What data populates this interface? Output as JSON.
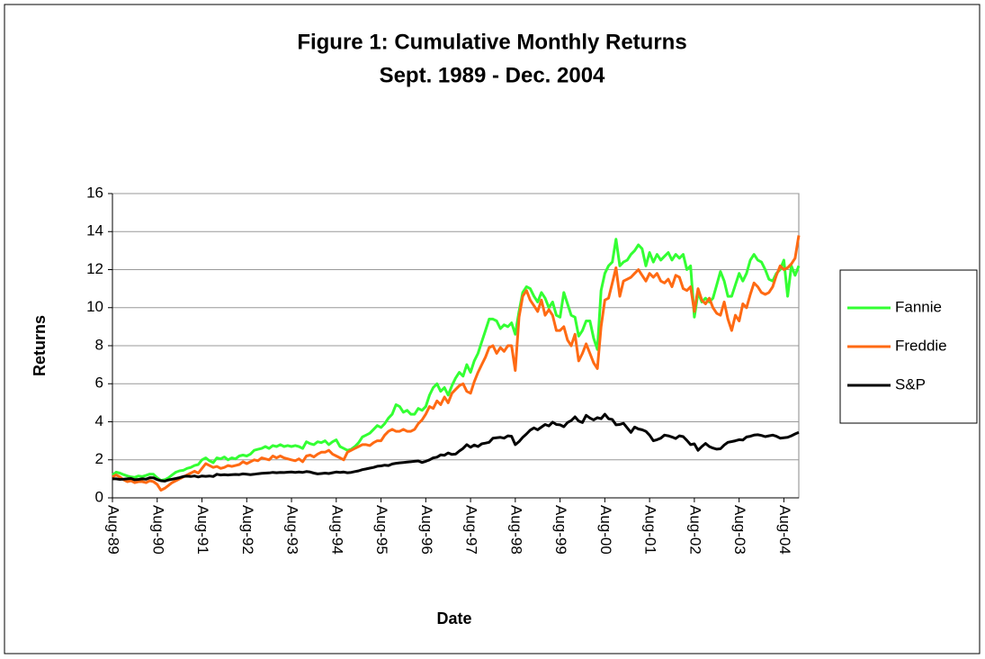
{
  "chart_data": {
    "type": "line",
    "title": "Figure 1: Cumulative Monthly Returns",
    "subtitle": "Sept. 1989 - Dec. 2004",
    "xlabel": "Date",
    "ylabel": "Returns",
    "categories": [
      "Aug-89",
      null,
      null,
      null,
      null,
      null,
      null,
      null,
      null,
      null,
      null,
      null,
      "Aug-90",
      null,
      null,
      null,
      null,
      null,
      null,
      null,
      null,
      null,
      null,
      null,
      "Aug-91",
      null,
      null,
      null,
      null,
      null,
      null,
      null,
      null,
      null,
      null,
      null,
      "Aug-92",
      null,
      null,
      null,
      null,
      null,
      null,
      null,
      null,
      null,
      null,
      null,
      "Aug-93",
      null,
      null,
      null,
      null,
      null,
      null,
      null,
      null,
      null,
      null,
      null,
      "Aug-94",
      null,
      null,
      null,
      null,
      null,
      null,
      null,
      null,
      null,
      null,
      null,
      "Aug-95",
      null,
      null,
      null,
      null,
      null,
      null,
      null,
      null,
      null,
      null,
      null,
      "Aug-96",
      null,
      null,
      null,
      null,
      null,
      null,
      null,
      null,
      null,
      null,
      null,
      "Aug-97",
      null,
      null,
      null,
      null,
      null,
      null,
      null,
      null,
      null,
      null,
      null,
      "Aug-98",
      null,
      null,
      null,
      null,
      null,
      null,
      null,
      null,
      null,
      null,
      null,
      "Aug-99",
      null,
      null,
      null,
      null,
      null,
      null,
      null,
      null,
      null,
      null,
      null,
      "Aug-00",
      null,
      null,
      null,
      null,
      null,
      null,
      null,
      null,
      null,
      null,
      null,
      "Aug-01",
      null,
      null,
      null,
      null,
      null,
      null,
      null,
      null,
      null,
      null,
      null,
      "Aug-02",
      null,
      null,
      null,
      null,
      null,
      null,
      null,
      null,
      null,
      null,
      null,
      "Aug-03",
      null,
      null,
      null,
      null,
      null,
      null,
      null,
      null,
      null,
      null,
      null,
      "Aug-04",
      null,
      null,
      null,
      null
    ],
    "series": [
      {
        "name": "Fannie",
        "color": "#33ff33",
        "values": [
          1.2,
          1.35,
          1.3,
          1.22,
          1.15,
          1.1,
          1.08,
          1.15,
          1.12,
          1.18,
          1.25,
          1.24,
          1.05,
          0.92,
          0.95,
          1.05,
          1.2,
          1.35,
          1.42,
          1.45,
          1.55,
          1.6,
          1.7,
          1.75,
          2.0,
          2.1,
          1.95,
          1.85,
          2.1,
          2.05,
          2.15,
          2.0,
          2.1,
          2.05,
          2.2,
          2.25,
          2.2,
          2.3,
          2.5,
          2.55,
          2.6,
          2.7,
          2.6,
          2.75,
          2.7,
          2.8,
          2.7,
          2.75,
          2.7,
          2.75,
          2.7,
          2.6,
          2.95,
          2.85,
          2.8,
          2.95,
          2.9,
          3.0,
          2.8,
          2.95,
          3.05,
          2.7,
          2.6,
          2.5,
          2.55,
          2.7,
          2.9,
          3.2,
          3.3,
          3.4,
          3.6,
          3.8,
          3.7,
          3.9,
          4.2,
          4.4,
          4.9,
          4.8,
          4.5,
          4.6,
          4.4,
          4.4,
          4.7,
          4.6,
          4.8,
          5.4,
          5.8,
          6.0,
          5.6,
          5.8,
          5.4,
          5.9,
          6.3,
          6.6,
          6.4,
          7.0,
          6.6,
          7.2,
          7.6,
          8.2,
          8.8,
          9.4,
          9.4,
          9.3,
          8.9,
          9.1,
          9.0,
          9.2,
          8.6,
          9.8,
          10.8,
          11.1,
          11.0,
          10.6,
          10.3,
          10.8,
          10.5,
          10.0,
          10.3,
          9.6,
          9.5,
          10.8,
          10.2,
          9.6,
          9.5,
          8.5,
          8.8,
          9.3,
          9.3,
          8.4,
          7.8,
          10.9,
          11.8,
          12.2,
          12.4,
          13.6,
          12.2,
          12.4,
          12.5,
          12.8,
          13.0,
          13.3,
          13.1,
          12.2,
          12.9,
          12.4,
          12.8,
          12.5,
          12.7,
          12.9,
          12.5,
          12.8,
          12.6,
          12.8,
          12.0,
          12.2,
          9.5,
          10.8,
          10.3,
          10.5,
          10.3,
          10.5,
          11.2,
          11.9,
          11.4,
          10.6,
          10.6,
          11.2,
          11.8,
          11.4,
          11.8,
          12.5,
          12.8,
          12.5,
          12.4,
          12.0,
          11.5,
          11.4,
          11.8,
          12.0,
          12.5,
          10.6,
          12.2,
          11.7,
          12.2
        ]
      },
      {
        "name": "Freddie",
        "color": "#ff6a13",
        "values": [
          1.1,
          1.2,
          1.1,
          0.95,
          0.85,
          0.9,
          0.8,
          0.85,
          0.85,
          0.8,
          0.9,
          0.85,
          0.7,
          0.4,
          0.5,
          0.65,
          0.8,
          0.9,
          1.0,
          1.1,
          1.2,
          1.3,
          1.4,
          1.3,
          1.55,
          1.8,
          1.7,
          1.6,
          1.65,
          1.55,
          1.6,
          1.7,
          1.65,
          1.7,
          1.75,
          1.9,
          1.8,
          1.9,
          2.0,
          1.95,
          2.1,
          2.05,
          2.0,
          2.2,
          2.1,
          2.2,
          2.1,
          2.05,
          2.0,
          1.95,
          2.05,
          1.9,
          2.2,
          2.25,
          2.15,
          2.3,
          2.4,
          2.4,
          2.5,
          2.3,
          2.2,
          2.1,
          2.0,
          2.4,
          2.5,
          2.6,
          2.7,
          2.8,
          2.8,
          2.75,
          2.9,
          3.0,
          3.0,
          3.3,
          3.5,
          3.6,
          3.5,
          3.5,
          3.6,
          3.5,
          3.5,
          3.6,
          3.9,
          4.1,
          4.4,
          4.8,
          4.7,
          5.1,
          4.9,
          5.3,
          5.0,
          5.5,
          5.7,
          5.9,
          6.0,
          5.6,
          5.5,
          6.1,
          6.6,
          7.0,
          7.4,
          7.9,
          8.0,
          7.6,
          7.9,
          7.7,
          8.0,
          8.0,
          6.7,
          9.5,
          10.6,
          10.9,
          10.4,
          10.1,
          9.8,
          10.4,
          9.6,
          9.9,
          9.6,
          8.8,
          8.8,
          9.0,
          8.3,
          8.0,
          8.6,
          7.2,
          7.6,
          8.1,
          7.6,
          7.1,
          6.8,
          9.0,
          10.4,
          10.5,
          11.3,
          12.1,
          10.6,
          11.4,
          11.5,
          11.6,
          11.8,
          12.0,
          11.7,
          11.4,
          11.8,
          11.6,
          11.8,
          11.4,
          11.3,
          11.5,
          11.1,
          11.7,
          11.6,
          11.0,
          10.9,
          11.1,
          9.8,
          11.0,
          10.4,
          10.2,
          10.5,
          10.0,
          9.7,
          9.6,
          10.3,
          9.4,
          8.8,
          9.6,
          9.3,
          10.2,
          10.0,
          10.7,
          11.3,
          11.1,
          10.8,
          10.7,
          10.8,
          11.1,
          11.7,
          12.2,
          12.0,
          12.1,
          12.3,
          12.6,
          13.8
        ]
      },
      {
        "name": "S&P",
        "color": "#000000",
        "values": [
          1.0,
          1.0,
          0.97,
          0.98,
          1.0,
          1.02,
          0.95,
          0.97,
          1.0,
          0.98,
          1.06,
          1.05,
          0.96,
          0.9,
          0.88,
          0.94,
          0.98,
          1.02,
          1.06,
          1.12,
          1.14,
          1.12,
          1.15,
          1.1,
          1.15,
          1.13,
          1.15,
          1.12,
          1.24,
          1.2,
          1.22,
          1.2,
          1.22,
          1.23,
          1.22,
          1.26,
          1.24,
          1.22,
          1.24,
          1.27,
          1.29,
          1.3,
          1.31,
          1.34,
          1.32,
          1.34,
          1.33,
          1.35,
          1.36,
          1.34,
          1.36,
          1.34,
          1.38,
          1.36,
          1.3,
          1.26,
          1.28,
          1.3,
          1.28,
          1.32,
          1.36,
          1.34,
          1.36,
          1.32,
          1.34,
          1.38,
          1.42,
          1.48,
          1.52,
          1.56,
          1.6,
          1.66,
          1.68,
          1.72,
          1.7,
          1.78,
          1.82,
          1.84,
          1.86,
          1.88,
          1.9,
          1.92,
          1.94,
          1.86,
          1.92,
          2.0,
          2.1,
          2.14,
          2.26,
          2.24,
          2.36,
          2.28,
          2.3,
          2.46,
          2.6,
          2.8,
          2.66,
          2.78,
          2.7,
          2.84,
          2.88,
          2.92,
          3.14,
          3.16,
          3.18,
          3.14,
          3.26,
          3.24,
          2.8,
          2.96,
          3.18,
          3.36,
          3.56,
          3.68,
          3.58,
          3.72,
          3.86,
          3.78,
          3.98,
          3.86,
          3.84,
          3.74,
          3.96,
          4.06,
          4.26,
          4.04,
          3.96,
          4.34,
          4.2,
          4.1,
          4.22,
          4.16,
          4.4,
          4.16,
          4.12,
          3.84,
          3.86,
          3.92,
          3.68,
          3.44,
          3.72,
          3.62,
          3.58,
          3.5,
          3.3,
          3.0,
          3.06,
          3.14,
          3.3,
          3.26,
          3.2,
          3.12,
          3.26,
          3.22,
          3.02,
          2.8,
          2.84,
          2.5,
          2.7,
          2.86,
          2.7,
          2.62,
          2.56,
          2.58,
          2.78,
          2.92,
          2.96,
          3.0,
          3.06,
          3.04,
          3.2,
          3.24,
          3.3,
          3.32,
          3.28,
          3.22,
          3.26,
          3.3,
          3.24,
          3.14,
          3.16,
          3.18,
          3.26,
          3.36,
          3.44
        ]
      }
    ],
    "ylim": [
      0,
      16
    ],
    "yticks": [
      0,
      2,
      4,
      6,
      8,
      10,
      12,
      14,
      16
    ],
    "grid": true,
    "legend": "right"
  }
}
